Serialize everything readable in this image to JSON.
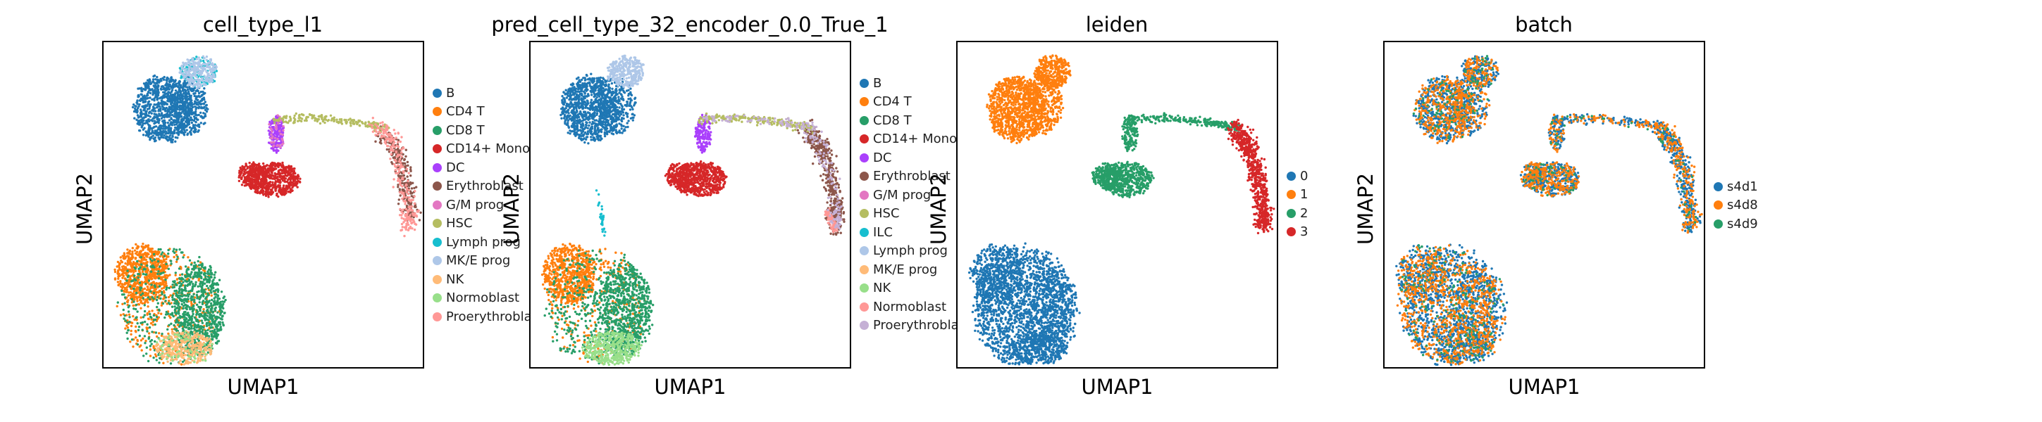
{
  "chart_data": [
    {
      "type": "scatter",
      "title": "cell_type_l1",
      "xlabel": "UMAP1",
      "ylabel": "UMAP2",
      "grid": false,
      "legend": "right",
      "series": [
        {
          "name": "B",
          "color": "#1f77b4"
        },
        {
          "name": "CD4 T",
          "color": "#ff7f0e"
        },
        {
          "name": "CD8 T",
          "color": "#279e68"
        },
        {
          "name": "CD14+ Mono",
          "color": "#d62728"
        },
        {
          "name": "DC",
          "color": "#aa40fc"
        },
        {
          "name": "Erythroblast",
          "color": "#8c564b"
        },
        {
          "name": "G/M prog",
          "color": "#e377c2"
        },
        {
          "name": "HSC",
          "color": "#b5bd61"
        },
        {
          "name": "Lymph prog",
          "color": "#17becf"
        },
        {
          "name": "MK/E prog",
          "color": "#aec7e8"
        },
        {
          "name": "NK",
          "color": "#ffbb78"
        },
        {
          "name": "Normoblast",
          "color": "#98df8a"
        },
        {
          "name": "Proerythroblast",
          "color": "#ff9896"
        }
      ]
    },
    {
      "type": "scatter",
      "title": "pred_cell_type_32_encoder_0.0_True_1",
      "xlabel": "UMAP1",
      "ylabel": "UMAP2",
      "grid": false,
      "legend": "right",
      "series": [
        {
          "name": "B",
          "color": "#1f77b4"
        },
        {
          "name": "CD4 T",
          "color": "#ff7f0e"
        },
        {
          "name": "CD8 T",
          "color": "#279e68"
        },
        {
          "name": "CD14+ Mono",
          "color": "#d62728"
        },
        {
          "name": "DC",
          "color": "#aa40fc"
        },
        {
          "name": "Erythroblast",
          "color": "#8c564b"
        },
        {
          "name": "G/M prog",
          "color": "#e377c2"
        },
        {
          "name": "HSC",
          "color": "#b5bd61"
        },
        {
          "name": "ILC",
          "color": "#17becf"
        },
        {
          "name": "Lymph prog",
          "color": "#aec7e8"
        },
        {
          "name": "MK/E prog",
          "color": "#ffbb78"
        },
        {
          "name": "NK",
          "color": "#98df8a"
        },
        {
          "name": "Normoblast",
          "color": "#ff9896"
        },
        {
          "name": "Proerythroblast",
          "color": "#c5b0d5"
        }
      ]
    },
    {
      "type": "scatter",
      "title": "leiden",
      "xlabel": "UMAP1",
      "ylabel": "UMAP2",
      "grid": false,
      "legend": "right",
      "series": [
        {
          "name": "0",
          "color": "#1f77b4"
        },
        {
          "name": "1",
          "color": "#ff7f0e"
        },
        {
          "name": "2",
          "color": "#279e68"
        },
        {
          "name": "3",
          "color": "#d62728"
        }
      ]
    },
    {
      "type": "scatter",
      "title": "batch",
      "xlabel": "UMAP1",
      "ylabel": "UMAP2",
      "grid": false,
      "legend": "right",
      "series": [
        {
          "name": "s4d1",
          "color": "#1f77b4"
        },
        {
          "name": "s4d8",
          "color": "#ff7f0e"
        },
        {
          "name": "s4d9",
          "color": "#279e68"
        }
      ]
    }
  ]
}
